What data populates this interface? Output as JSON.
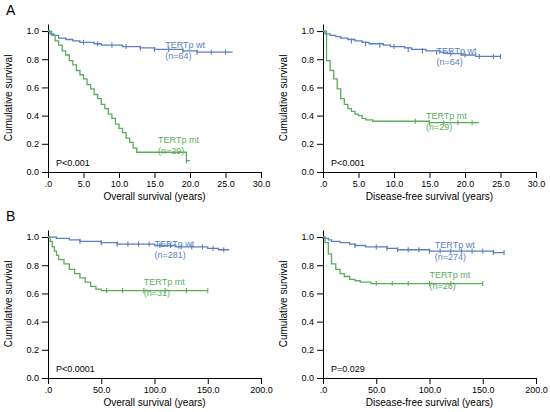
{
  "chart_data": [
    {
      "type": "step",
      "title": "A",
      "x_label": "Overall survival (years)",
      "y_label": "Cumulative survival",
      "xlim": [
        0,
        30
      ],
      "ylim": [
        0.0,
        1.05
      ],
      "xticks": [
        {
          "value": 0,
          "label": ".0"
        },
        {
          "value": 5.0,
          "label": "5.0"
        },
        {
          "value": 10.0,
          "label": "10.0"
        },
        {
          "value": 15.0,
          "label": "15.0"
        },
        {
          "value": 20.0,
          "label": "20.0"
        },
        {
          "value": 25.0,
          "label": "25.0"
        },
        {
          "value": 30.0,
          "label": "30.0"
        }
      ],
      "yticks": [
        {
          "value": 0.0,
          "label": "0.0"
        },
        0.2,
        0.4,
        0.6,
        0.8,
        {
          "value": 1.0,
          "label": "1.0"
        }
      ],
      "series": [
        {
          "color": "#5B7FBF",
          "x": [
            0,
            0.3,
            0.8,
            1.5,
            2.5,
            3.5,
            4.5,
            5.5,
            6.5,
            7.5,
            8.5,
            9.5,
            10.5,
            11.5,
            12,
            13,
            14,
            15,
            16,
            17,
            18,
            19,
            20,
            21,
            22,
            23,
            24,
            25,
            26
          ],
          "values": [
            1.0,
            0.98,
            0.97,
            0.95,
            0.94,
            0.93,
            0.92,
            0.92,
            0.91,
            0.9,
            0.9,
            0.9,
            0.89,
            0.89,
            0.89,
            0.88,
            0.88,
            0.87,
            0.87,
            0.87,
            0.87,
            0.86,
            0.86,
            0.85,
            0.85,
            0.85,
            0.85,
            0.85,
            0.85
          ],
          "censor_x": [
            5,
            7,
            9,
            11,
            13,
            15,
            17,
            19,
            21,
            23,
            25
          ],
          "censor_y": [
            0.92,
            0.91,
            0.9,
            0.89,
            0.88,
            0.87,
            0.87,
            0.86,
            0.85,
            0.85,
            0.85
          ]
        },
        {
          "color": "#5BAD5B",
          "x": [
            0,
            0.5,
            1.0,
            1.5,
            2.0,
            2.5,
            3.0,
            3.5,
            4.0,
            4.5,
            5.0,
            5.5,
            6.0,
            6.5,
            7.0,
            7.5,
            8.0,
            8.5,
            9.0,
            9.5,
            10.0,
            10.5,
            11.0,
            11.5,
            12.0,
            12.5,
            13.0,
            13.5,
            14.0,
            14.5,
            15.0,
            15.5,
            16.0,
            17.0,
            18.0,
            19.5,
            20.0
          ],
          "values": [
            1.0,
            0.97,
            0.93,
            0.9,
            0.86,
            0.83,
            0.79,
            0.76,
            0.72,
            0.69,
            0.66,
            0.62,
            0.59,
            0.55,
            0.52,
            0.48,
            0.45,
            0.41,
            0.38,
            0.34,
            0.31,
            0.28,
            0.24,
            0.21,
            0.17,
            0.14,
            0.14,
            0.14,
            0.14,
            0.14,
            0.14,
            0.14,
            0.14,
            0.14,
            0.14,
            0.08,
            0.08
          ],
          "censor_x": [
            19.5
          ],
          "censor_y": [
            0.08
          ]
        }
      ],
      "annotations": [
        {
          "text": "P<0.001"
        },
        {
          "text": "TERTp wt\n(n=64)",
          "x": 16.5,
          "y": 0.93,
          "color": "#5B7FBF"
        },
        {
          "text": "TERTp mt\n(n=29)",
          "x": 15.5,
          "y": 0.26,
          "color": "#5BAD5B"
        }
      ]
    },
    {
      "type": "step",
      "x_label": "Disease-free survival (years)",
      "y_label": "Cumulative survival",
      "xlim": [
        0,
        30
      ],
      "ylim": [
        0.0,
        1.05
      ],
      "xticks": [
        {
          "value": 0,
          "label": ".0"
        },
        {
          "value": 5.0,
          "label": "5.0"
        },
        {
          "value": 10.0,
          "label": "10.0"
        },
        {
          "value": 15.0,
          "label": "15.0"
        },
        {
          "value": 20.0,
          "label": "20.0"
        },
        {
          "value": 25.0,
          "label": "25.0"
        },
        {
          "value": 30.0,
          "label": "30.0"
        }
      ],
      "yticks": [
        {
          "value": 0.0,
          "label": "0.0"
        },
        0.2,
        0.4,
        0.6,
        0.8,
        {
          "value": 1.0,
          "label": "1.0"
        }
      ],
      "series": [
        {
          "color": "#5B7FBF",
          "x": [
            0,
            0.3,
            1.0,
            1.8,
            2.5,
            3.5,
            4.5,
            5.5,
            6.5,
            7.5,
            8.5,
            9.5,
            10.5,
            11.5,
            12.5,
            13.5,
            14.5,
            15.5,
            16.5,
            17.5,
            18.5,
            19.5,
            20.5,
            21.5,
            22.5,
            23.5,
            24.5,
            25
          ],
          "values": [
            1.0,
            0.98,
            0.97,
            0.96,
            0.95,
            0.94,
            0.93,
            0.92,
            0.91,
            0.91,
            0.9,
            0.89,
            0.89,
            0.88,
            0.87,
            0.87,
            0.86,
            0.86,
            0.85,
            0.84,
            0.84,
            0.83,
            0.83,
            0.82,
            0.82,
            0.82,
            0.82,
            0.82
          ],
          "censor_x": [
            4,
            6,
            8,
            10,
            12,
            14,
            16,
            18,
            20,
            22,
            24,
            25
          ],
          "censor_y": [
            0.93,
            0.91,
            0.9,
            0.89,
            0.87,
            0.86,
            0.85,
            0.84,
            0.83,
            0.82,
            0.82,
            0.82
          ]
        },
        {
          "color": "#5BAD5B",
          "x": [
            0,
            0.5,
            1.0,
            1.5,
            2.0,
            2.5,
            3.0,
            3.5,
            4.0,
            4.5,
            5.0,
            5.5,
            6.0,
            7.0,
            8.0,
            9.0,
            10.0,
            11.0,
            12.0,
            13.0,
            14.0,
            15.0,
            16.0,
            18.0,
            20.0,
            22.0
          ],
          "values": [
            1.0,
            0.79,
            0.72,
            0.66,
            0.59,
            0.52,
            0.48,
            0.45,
            0.43,
            0.41,
            0.4,
            0.38,
            0.37,
            0.36,
            0.36,
            0.36,
            0.36,
            0.36,
            0.36,
            0.36,
            0.36,
            0.35,
            0.35,
            0.35,
            0.35,
            0.35
          ],
          "censor_x": [
            13,
            15,
            17,
            19,
            21
          ],
          "censor_y": [
            0.36,
            0.35,
            0.35,
            0.35,
            0.35
          ]
        }
      ],
      "annotations": [
        {
          "text": "P<0.001"
        },
        {
          "text": "TERTp wt\n(n=64)",
          "x": 16.0,
          "y": 0.89,
          "color": "#5B7FBF"
        },
        {
          "text": "TERTp mt\n(n=29)",
          "x": 14.5,
          "y": 0.43,
          "color": "#5BAD5B"
        }
      ]
    },
    {
      "type": "step",
      "title": "B",
      "x_label": "Overall survival (years)",
      "y_label": "Cumulative survival",
      "xlim": [
        0,
        200
      ],
      "ylim": [
        0.0,
        1.05
      ],
      "xticks": [
        {
          "value": 0,
          "label": ".0"
        },
        {
          "value": 50.0,
          "label": "50.0"
        },
        {
          "value": 100.0,
          "label": "100.0"
        },
        {
          "value": 150.0,
          "label": "150.0"
        },
        {
          "value": 200.0,
          "label": "200.0"
        }
      ],
      "yticks": [
        {
          "value": 0.0,
          "label": "0.0"
        },
        0.2,
        0.4,
        0.6,
        0.8,
        {
          "value": 1.0,
          "label": "1.0"
        }
      ],
      "series": [
        {
          "color": "#5B7FBF",
          "x": [
            0,
            2,
            5,
            8,
            12,
            16,
            20,
            25,
            30,
            35,
            40,
            45,
            50,
            55,
            60,
            65,
            70,
            75,
            80,
            90,
            100,
            110,
            120,
            130,
            140,
            150,
            160,
            170
          ],
          "values": [
            1.0,
            1.0,
            1.0,
            0.99,
            0.99,
            0.99,
            0.98,
            0.98,
            0.97,
            0.97,
            0.97,
            0.97,
            0.96,
            0.96,
            0.96,
            0.95,
            0.95,
            0.95,
            0.95,
            0.95,
            0.94,
            0.94,
            0.93,
            0.93,
            0.93,
            0.92,
            0.91,
            0.91
          ],
          "censor_x": [
            30,
            50,
            65,
            75,
            85,
            95,
            105,
            115,
            125,
            135,
            145,
            155,
            165
          ],
          "censor_y": [
            0.97,
            0.96,
            0.95,
            0.95,
            0.95,
            0.95,
            0.94,
            0.94,
            0.93,
            0.93,
            0.93,
            0.92,
            0.91
          ]
        },
        {
          "color": "#5BAD5B",
          "x": [
            0,
            2,
            4,
            6,
            8,
            10,
            15,
            20,
            25,
            30,
            35,
            40,
            45,
            50,
            60,
            70,
            80,
            100,
            120,
            150
          ],
          "values": [
            1.0,
            0.97,
            0.93,
            0.9,
            0.87,
            0.84,
            0.81,
            0.77,
            0.74,
            0.71,
            0.68,
            0.65,
            0.63,
            0.62,
            0.62,
            0.62,
            0.62,
            0.62,
            0.62,
            0.62
          ],
          "censor_x": [
            55,
            70,
            90,
            110,
            130,
            150
          ],
          "censor_y": [
            0.62,
            0.62,
            0.62,
            0.62,
            0.62,
            0.62
          ]
        }
      ],
      "annotations": [
        {
          "text": "P<0.0001"
        },
        {
          "text": "TERTp wt\n(n=281)",
          "x": 100,
          "y": 0.98,
          "color": "#5B7FBF"
        },
        {
          "text": "TERTp mt\n(n=31)",
          "x": 90,
          "y": 0.71,
          "color": "#5BAD5B"
        }
      ]
    },
    {
      "type": "step",
      "x_label": "Disease-free survival (years)",
      "y_label": "Cumulative survival",
      "xlim": [
        0,
        200
      ],
      "ylim": [
        0.0,
        1.05
      ],
      "xticks": [
        {
          "value": 0,
          "label": ".0"
        },
        {
          "value": 50.0,
          "label": "50.0"
        },
        {
          "value": 100.0,
          "label": "100.0"
        },
        {
          "value": 150.0,
          "label": "150.0"
        },
        {
          "value": 200.0,
          "label": "200.0"
        }
      ],
      "yticks": [
        {
          "value": 0.0,
          "label": "0.0"
        },
        0.2,
        0.4,
        0.6,
        0.8,
        {
          "value": 1.0,
          "label": "1.0"
        }
      ],
      "series": [
        {
          "color": "#5B7FBF",
          "x": [
            0,
            2,
            5,
            8,
            12,
            16,
            20,
            25,
            30,
            35,
            40,
            45,
            50,
            55,
            60,
            65,
            70,
            75,
            80,
            90,
            100,
            110,
            120,
            130,
            140,
            150,
            160,
            170
          ],
          "values": [
            1.0,
            0.99,
            0.98,
            0.97,
            0.97,
            0.96,
            0.96,
            0.95,
            0.94,
            0.94,
            0.93,
            0.93,
            0.93,
            0.93,
            0.92,
            0.92,
            0.91,
            0.91,
            0.91,
            0.91,
            0.9,
            0.9,
            0.9,
            0.9,
            0.9,
            0.9,
            0.89,
            0.89
          ],
          "censor_x": [
            30,
            50,
            60,
            70,
            80,
            90,
            100,
            110,
            120,
            130,
            140,
            150,
            160,
            170
          ],
          "censor_y": [
            0.94,
            0.93,
            0.92,
            0.91,
            0.91,
            0.91,
            0.9,
            0.9,
            0.9,
            0.9,
            0.9,
            0.9,
            0.89,
            0.89
          ]
        },
        {
          "color": "#5BAD5B",
          "x": [
            0,
            2,
            5,
            8,
            12,
            16,
            20,
            25,
            30,
            35,
            40,
            45,
            50,
            60,
            70,
            80,
            100,
            120,
            150
          ],
          "values": [
            1.0,
            0.96,
            0.88,
            0.81,
            0.77,
            0.74,
            0.72,
            0.7,
            0.69,
            0.68,
            0.68,
            0.67,
            0.67,
            0.67,
            0.67,
            0.67,
            0.67,
            0.67,
            0.67
          ],
          "censor_x": [
            50,
            65,
            80,
            100,
            120,
            150
          ],
          "censor_y": [
            0.67,
            0.67,
            0.67,
            0.67,
            0.67,
            0.67
          ]
        }
      ],
      "annotations": [
        {
          "text": "P=0.029"
        },
        {
          "text": "TERTp wt\n(n=274)",
          "x": 105,
          "y": 0.97,
          "color": "#5B7FBF"
        },
        {
          "text": "TERTp mt\n(n=26)",
          "x": 100,
          "y": 0.76,
          "color": "#5BAD5B"
        }
      ]
    }
  ]
}
